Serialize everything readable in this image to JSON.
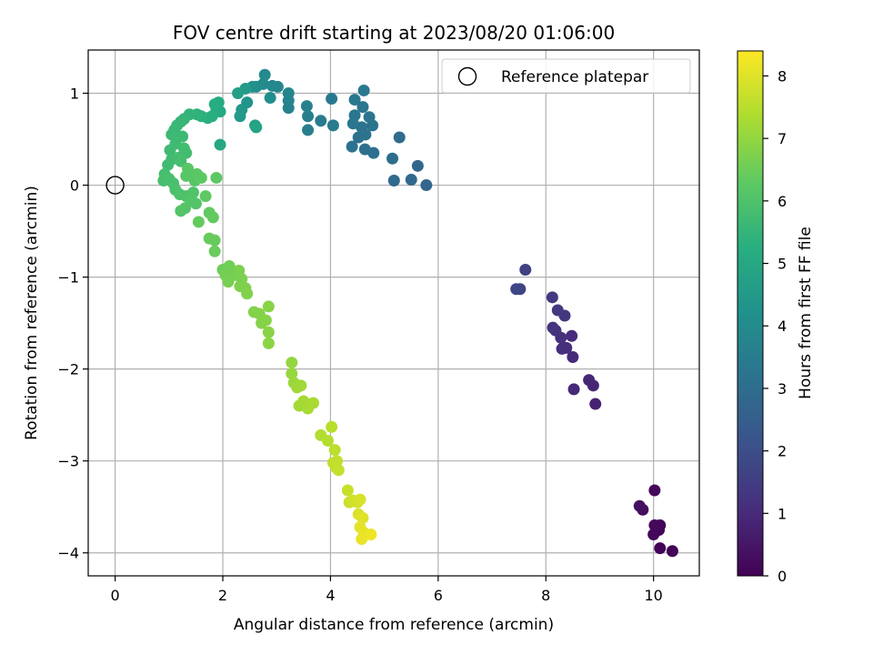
{
  "chart_data": {
    "type": "scatter",
    "title": "FOV centre drift starting at 2023/08/20 01:06:00",
    "xlabel": "Angular distance from reference (arcmin)",
    "ylabel": "Rotation from reference (arcmin)",
    "xlim": [
      -0.5,
      10.85
    ],
    "ylim": [
      -4.25,
      1.47
    ],
    "xticks": [
      0,
      2,
      4,
      6,
      8,
      10
    ],
    "yticks": [
      -4,
      -3,
      -2,
      -1,
      0,
      1
    ],
    "grid": true,
    "legend": {
      "placement": "top-right",
      "entries": [
        {
          "label": "Reference platepar",
          "marker": "open-circle"
        }
      ]
    },
    "reference_point": {
      "x": 0,
      "y": 0
    },
    "colorbar": {
      "label": "Hours from first FF file",
      "min": 0,
      "max": 8.4,
      "ticks": [
        0,
        1,
        2,
        3,
        4,
        5,
        6,
        7,
        8
      ],
      "colormap": "viridis"
    },
    "points": [
      [
        10.35,
        -3.98,
        0.05
      ],
      [
        10.12,
        -3.95,
        0.08
      ],
      [
        10.1,
        -3.75,
        0.1
      ],
      [
        10.12,
        -3.7,
        0.12
      ],
      [
        10.0,
        -3.8,
        0.15
      ],
      [
        10.02,
        -3.7,
        0.18
      ],
      [
        10.02,
        -3.32,
        0.2
      ],
      [
        9.8,
        -3.53,
        0.3
      ],
      [
        9.74,
        -3.49,
        0.35
      ],
      [
        8.92,
        -2.38,
        0.8
      ],
      [
        8.88,
        -2.18,
        0.85
      ],
      [
        8.8,
        -2.12,
        0.9
      ],
      [
        8.52,
        -2.22,
        0.95
      ],
      [
        8.5,
        -1.87,
        1.0
      ],
      [
        8.48,
        -1.64,
        1.05
      ],
      [
        8.38,
        -1.77,
        1.1
      ],
      [
        8.3,
        -1.78,
        1.12
      ],
      [
        8.28,
        -1.66,
        1.15
      ],
      [
        8.18,
        -1.58,
        1.2
      ],
      [
        8.13,
        -1.55,
        1.25
      ],
      [
        8.35,
        -1.42,
        1.3
      ],
      [
        8.22,
        -1.36,
        1.35
      ],
      [
        8.12,
        -1.22,
        1.4
      ],
      [
        7.62,
        -0.92,
        1.6
      ],
      [
        7.52,
        -1.13,
        1.7
      ],
      [
        7.45,
        -1.13,
        1.75
      ],
      [
        5.78,
        0.0,
        2.75
      ],
      [
        5.62,
        0.21,
        2.8
      ],
      [
        5.5,
        0.06,
        2.85
      ],
      [
        5.18,
        0.05,
        2.9
      ],
      [
        5.28,
        0.52,
        2.95
      ],
      [
        5.15,
        0.29,
        3.0
      ],
      [
        4.8,
        0.35,
        3.05
      ],
      [
        4.64,
        0.39,
        3.1
      ],
      [
        4.52,
        0.52,
        3.12
      ],
      [
        4.4,
        0.42,
        3.15
      ],
      [
        4.65,
        0.55,
        3.18
      ],
      [
        4.58,
        0.63,
        3.2
      ],
      [
        4.78,
        0.65,
        3.22
      ],
      [
        4.72,
        0.74,
        3.25
      ],
      [
        4.6,
        0.85,
        3.28
      ],
      [
        4.45,
        0.76,
        3.3
      ],
      [
        4.42,
        0.67,
        3.32
      ],
      [
        4.45,
        0.93,
        3.35
      ],
      [
        4.62,
        1.03,
        3.38
      ],
      [
        4.02,
        0.94,
        3.4
      ],
      [
        4.05,
        0.65,
        3.45
      ],
      [
        3.82,
        0.7,
        3.5
      ],
      [
        3.58,
        0.6,
        3.55
      ],
      [
        3.58,
        0.75,
        3.6
      ],
      [
        3.56,
        0.86,
        3.65
      ],
      [
        3.22,
        0.84,
        3.7
      ],
      [
        3.22,
        0.92,
        3.75
      ],
      [
        3.22,
        1.0,
        3.8
      ],
      [
        3.02,
        1.07,
        3.85
      ],
      [
        2.92,
        1.08,
        3.9
      ],
      [
        2.78,
        1.2,
        3.95
      ],
      [
        2.75,
        1.1,
        4.0
      ],
      [
        2.62,
        1.07,
        4.05
      ],
      [
        2.88,
        0.95,
        4.1
      ],
      [
        2.55,
        1.07,
        4.2
      ],
      [
        2.45,
        0.9,
        4.3
      ],
      [
        2.35,
        0.82,
        4.4
      ],
      [
        2.32,
        0.75,
        4.5
      ],
      [
        2.42,
        1.05,
        4.6
      ],
      [
        2.28,
        1.0,
        4.7
      ],
      [
        2.6,
        0.65,
        4.8
      ],
      [
        2.62,
        0.63,
        4.9
      ],
      [
        1.95,
        0.44,
        5.0
      ],
      [
        1.95,
        0.8,
        5.05
      ],
      [
        1.92,
        0.9,
        5.1
      ],
      [
        1.88,
        0.82,
        5.15
      ],
      [
        1.85,
        0.88,
        5.2
      ],
      [
        1.8,
        0.75,
        5.25
      ],
      [
        1.72,
        0.73,
        5.3
      ],
      [
        1.6,
        0.75,
        5.35
      ],
      [
        1.52,
        0.77,
        5.4
      ],
      [
        1.38,
        0.77,
        5.45
      ],
      [
        1.28,
        0.72,
        5.5
      ],
      [
        1.22,
        0.69,
        5.55
      ],
      [
        1.15,
        0.65,
        5.6
      ],
      [
        1.1,
        0.6,
        5.62
      ],
      [
        1.05,
        0.55,
        5.65
      ],
      [
        1.25,
        0.53,
        5.68
      ],
      [
        1.12,
        0.45,
        5.7
      ],
      [
        1.02,
        0.38,
        5.72
      ],
      [
        1.05,
        0.28,
        5.74
      ],
      [
        0.98,
        0.22,
        5.76
      ],
      [
        1.28,
        0.4,
        5.78
      ],
      [
        1.32,
        0.35,
        5.8
      ],
      [
        1.22,
        0.26,
        5.82
      ],
      [
        1.18,
        0.3,
        5.84
      ],
      [
        0.92,
        0.12,
        5.86
      ],
      [
        0.9,
        0.05,
        5.88
      ],
      [
        1.08,
        0.02,
        5.9
      ],
      [
        1.0,
        0.07,
        5.92
      ],
      [
        1.12,
        -0.05,
        5.95
      ],
      [
        1.2,
        -0.1,
        5.98
      ],
      [
        1.32,
        -0.12,
        6.0
      ],
      [
        1.45,
        -0.08,
        6.02
      ],
      [
        1.4,
        -0.15,
        6.05
      ],
      [
        1.5,
        -0.2,
        6.08
      ],
      [
        1.3,
        -0.25,
        6.1
      ],
      [
        1.22,
        -0.28,
        6.12
      ],
      [
        1.48,
        0.05,
        6.15
      ],
      [
        1.32,
        0.1,
        6.18
      ],
      [
        1.35,
        0.18,
        6.2
      ],
      [
        1.52,
        0.12,
        6.22
      ],
      [
        1.6,
        0.08,
        6.25
      ],
      [
        1.88,
        0.08,
        6.28
      ],
      [
        1.68,
        -0.12,
        6.3
      ],
      [
        1.75,
        -0.3,
        6.32
      ],
      [
        1.82,
        -0.35,
        6.35
      ],
      [
        1.55,
        -0.4,
        6.38
      ],
      [
        1.75,
        -0.58,
        6.4
      ],
      [
        1.85,
        -0.6,
        6.42
      ],
      [
        1.85,
        -0.72,
        6.45
      ],
      [
        2.0,
        -0.92,
        6.5
      ],
      [
        2.12,
        -0.88,
        6.55
      ],
      [
        2.2,
        -0.98,
        6.6
      ],
      [
        2.05,
        -0.98,
        6.62
      ],
      [
        2.1,
        -1.05,
        6.65
      ],
      [
        2.3,
        -0.93,
        6.68
      ],
      [
        2.35,
        -1.02,
        6.7
      ],
      [
        2.32,
        -1.1,
        6.72
      ],
      [
        2.42,
        -1.12,
        6.74
      ],
      [
        2.45,
        -1.18,
        6.76
      ],
      [
        2.58,
        -1.38,
        6.78
      ],
      [
        2.68,
        -1.4,
        6.8
      ],
      [
        2.72,
        -1.5,
        6.82
      ],
      [
        2.8,
        -1.47,
        6.84
      ],
      [
        2.85,
        -1.32,
        6.86
      ],
      [
        2.85,
        -1.6,
        6.88
      ],
      [
        2.85,
        -1.72,
        6.9
      ],
      [
        3.28,
        -1.93,
        7.0
      ],
      [
        3.28,
        -2.05,
        7.05
      ],
      [
        3.32,
        -2.15,
        7.1
      ],
      [
        3.38,
        -2.2,
        7.15
      ],
      [
        3.45,
        -2.18,
        7.18
      ],
      [
        3.42,
        -2.4,
        7.2
      ],
      [
        3.5,
        -2.35,
        7.25
      ],
      [
        3.58,
        -2.43,
        7.28
      ],
      [
        3.68,
        -2.37,
        7.3
      ],
      [
        3.82,
        -2.72,
        7.4
      ],
      [
        3.95,
        -2.78,
        7.45
      ],
      [
        4.02,
        -2.63,
        7.5
      ],
      [
        4.08,
        -2.88,
        7.55
      ],
      [
        4.05,
        -3.02,
        7.6
      ],
      [
        4.1,
        -3.07,
        7.62
      ],
      [
        4.12,
        -3.0,
        7.64
      ],
      [
        4.15,
        -3.1,
        7.66
      ],
      [
        4.32,
        -3.32,
        7.7
      ],
      [
        4.35,
        -3.45,
        7.75
      ],
      [
        4.42,
        -3.43,
        7.8
      ],
      [
        4.5,
        -3.45,
        7.85
      ],
      [
        4.55,
        -3.42,
        7.9
      ],
      [
        4.52,
        -3.58,
        7.95
      ],
      [
        4.6,
        -3.62,
        8.0
      ],
      [
        4.55,
        -3.72,
        8.05
      ],
      [
        4.62,
        -3.78,
        8.1
      ],
      [
        4.58,
        -3.85,
        8.15
      ],
      [
        4.75,
        -3.8,
        8.2
      ]
    ]
  }
}
